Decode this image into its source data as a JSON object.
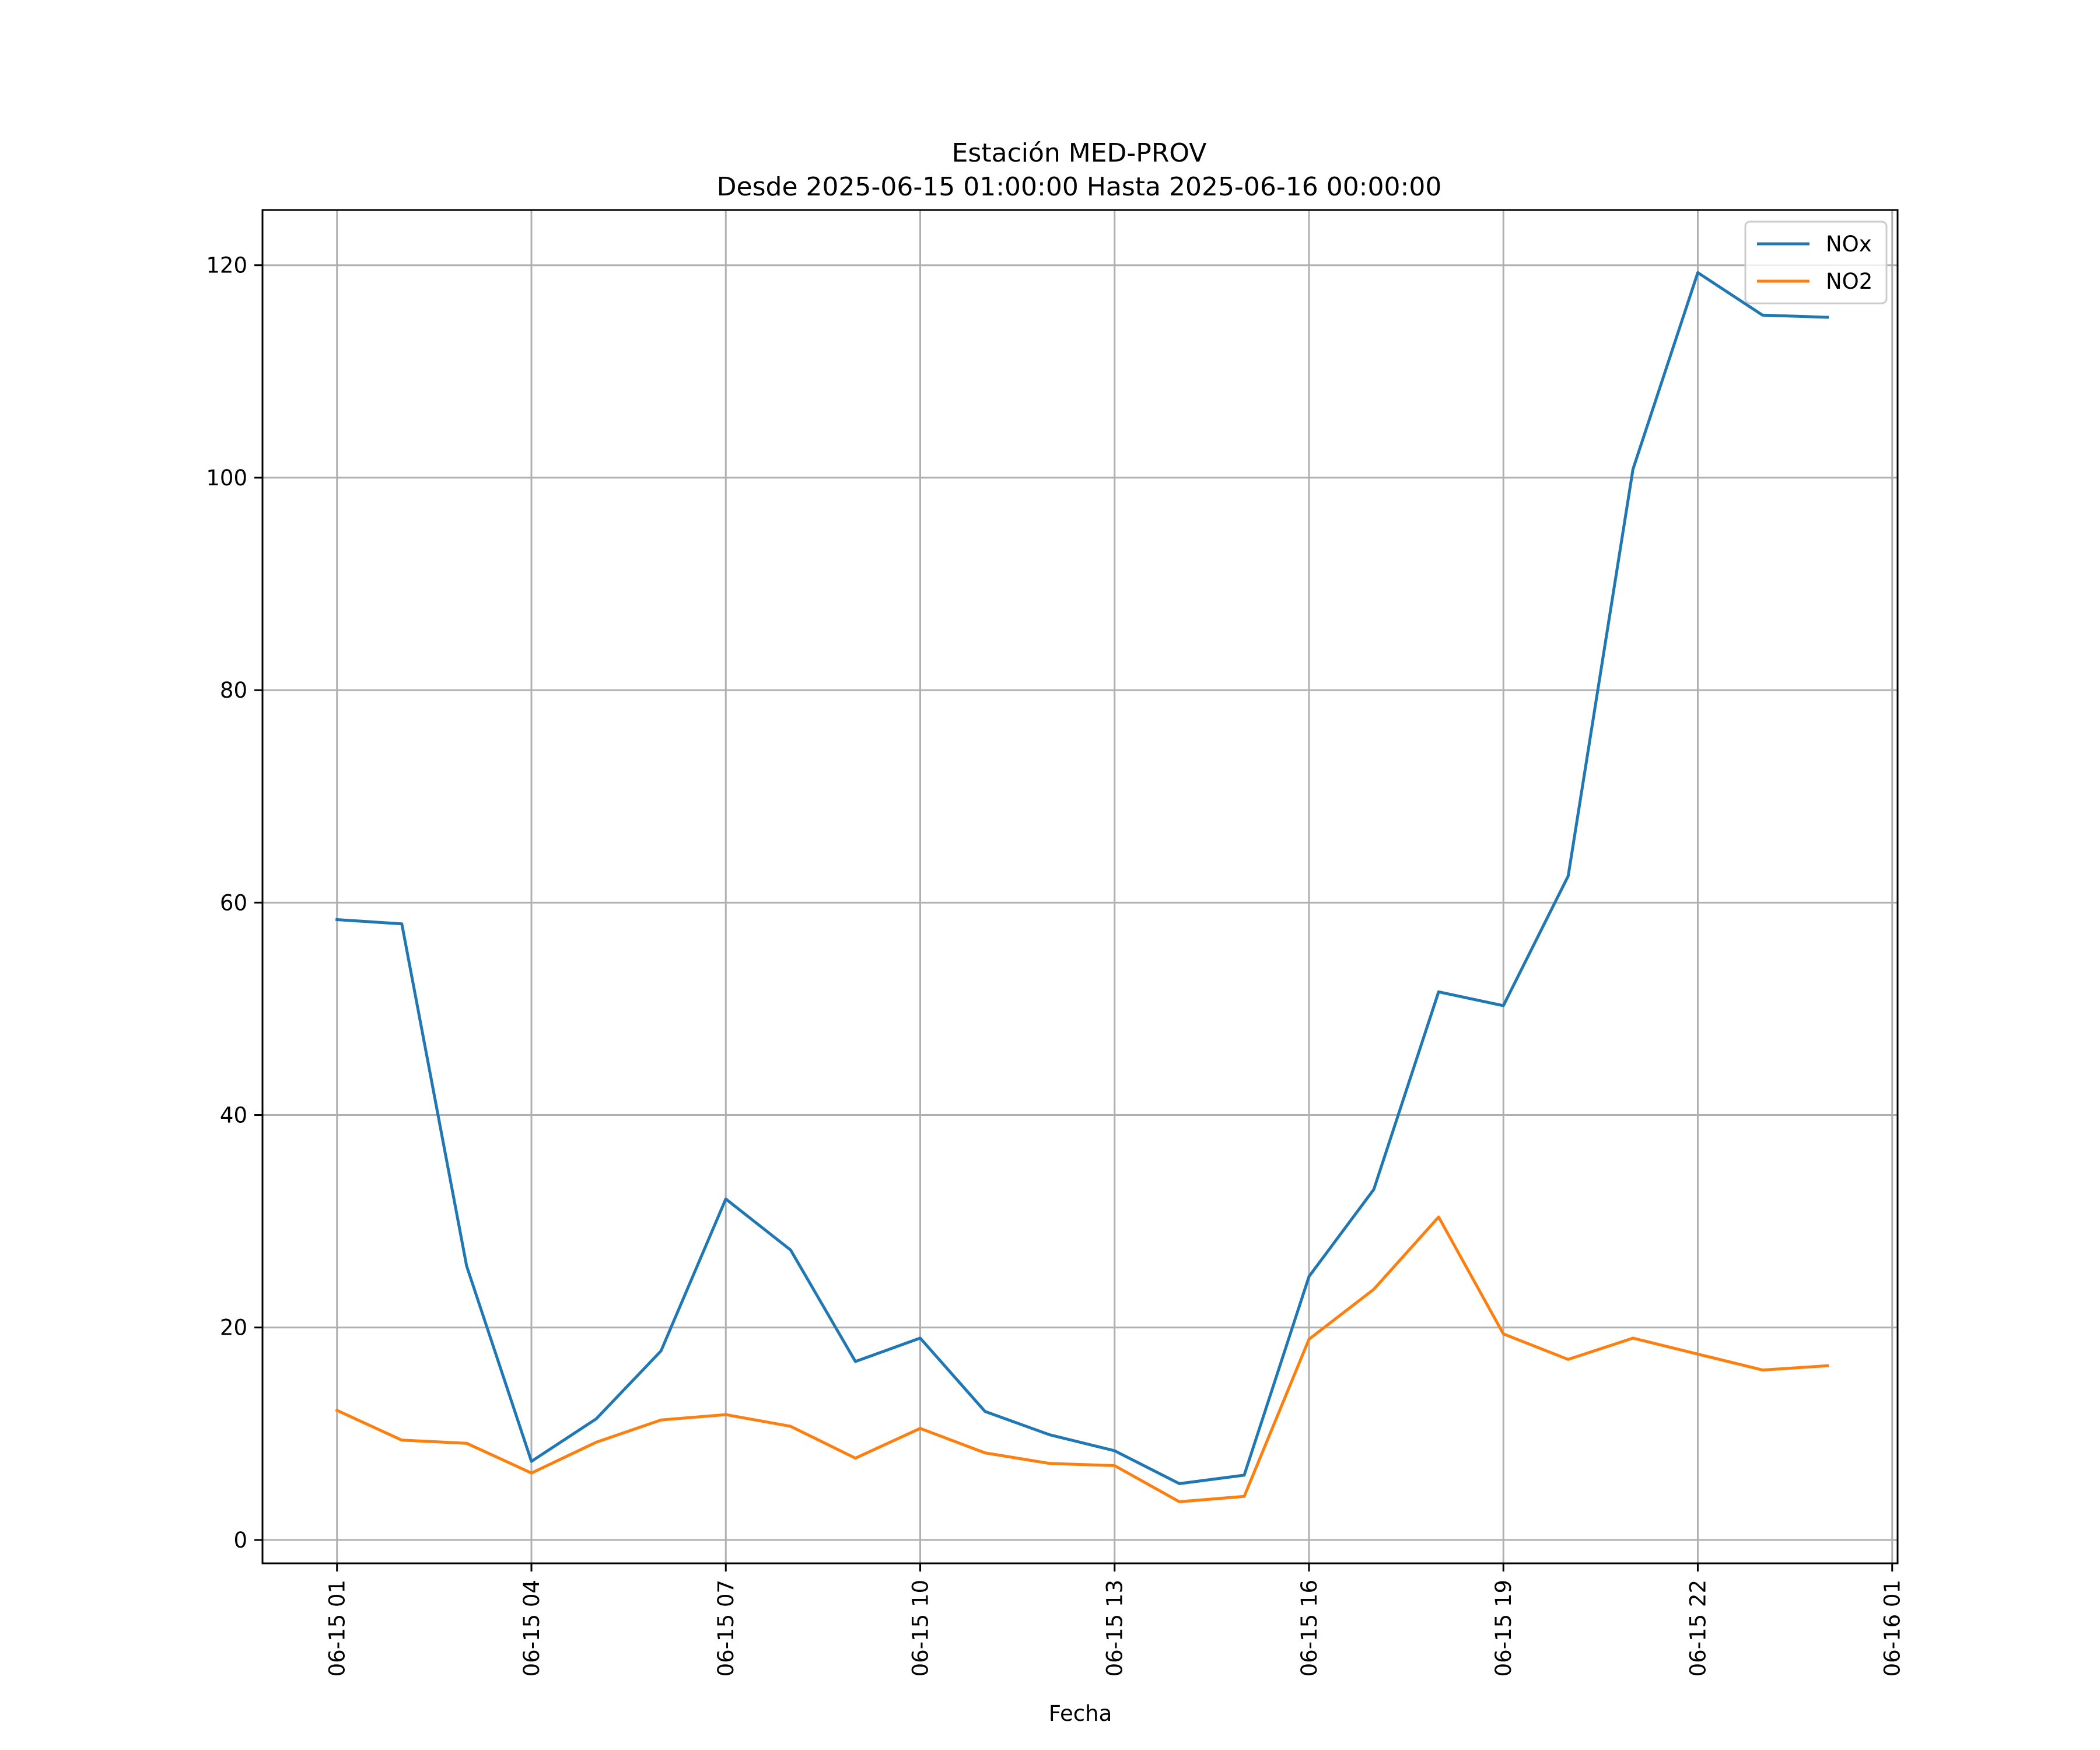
{
  "chart_data": {
    "type": "line",
    "title": "Estación MED-PROV",
    "subtitle": "Desde 2025-06-15 01:00:00 Hasta 2025-06-16 00:00:00",
    "xlabel": "Fecha",
    "ylabel": "",
    "x": [
      "2025-06-15 01:00",
      "2025-06-15 02:00",
      "2025-06-15 03:00",
      "2025-06-15 04:00",
      "2025-06-15 05:00",
      "2025-06-15 06:00",
      "2025-06-15 07:00",
      "2025-06-15 08:00",
      "2025-06-15 09:00",
      "2025-06-15 10:00",
      "2025-06-15 11:00",
      "2025-06-15 12:00",
      "2025-06-15 13:00",
      "2025-06-15 14:00",
      "2025-06-15 15:00",
      "2025-06-15 16:00",
      "2025-06-15 17:00",
      "2025-06-15 18:00",
      "2025-06-15 19:00",
      "2025-06-15 20:00",
      "2025-06-15 21:00",
      "2025-06-15 22:00",
      "2025-06-15 23:00",
      "2025-06-16 00:00"
    ],
    "series": [
      {
        "name": "NOx",
        "color": "#1f77b4",
        "values": [
          58.4,
          58.0,
          25.8,
          7.4,
          11.4,
          17.8,
          32.1,
          27.3,
          16.8,
          19.0,
          12.1,
          9.9,
          8.4,
          5.3,
          6.1,
          24.8,
          33.0,
          51.6,
          50.3,
          62.5,
          100.8,
          119.3,
          115.3,
          115.1
        ]
      },
      {
        "name": "NO2",
        "color": "#ff7f0e",
        "values": [
          12.2,
          9.4,
          9.1,
          6.3,
          9.2,
          11.3,
          11.8,
          10.7,
          7.7,
          10.5,
          8.2,
          7.2,
          7.0,
          3.6,
          4.1,
          18.9,
          23.6,
          30.4,
          19.4,
          17.0,
          19.0,
          17.5,
          16.0,
          16.4
        ]
      }
    ],
    "xticks": [
      "06-15 01",
      "06-15 04",
      "06-15 07",
      "06-15 10",
      "06-15 13",
      "06-15 16",
      "06-15 19",
      "06-15 22",
      "06-16 01"
    ],
    "yticks": [
      0,
      20,
      40,
      60,
      80,
      100,
      120
    ],
    "xlim": [
      "2025-06-14 23:51",
      "2025-06-16 01:05"
    ],
    "ylim": [
      -2.2,
      125.2
    ],
    "grid": true,
    "legend_position": "top-right"
  }
}
